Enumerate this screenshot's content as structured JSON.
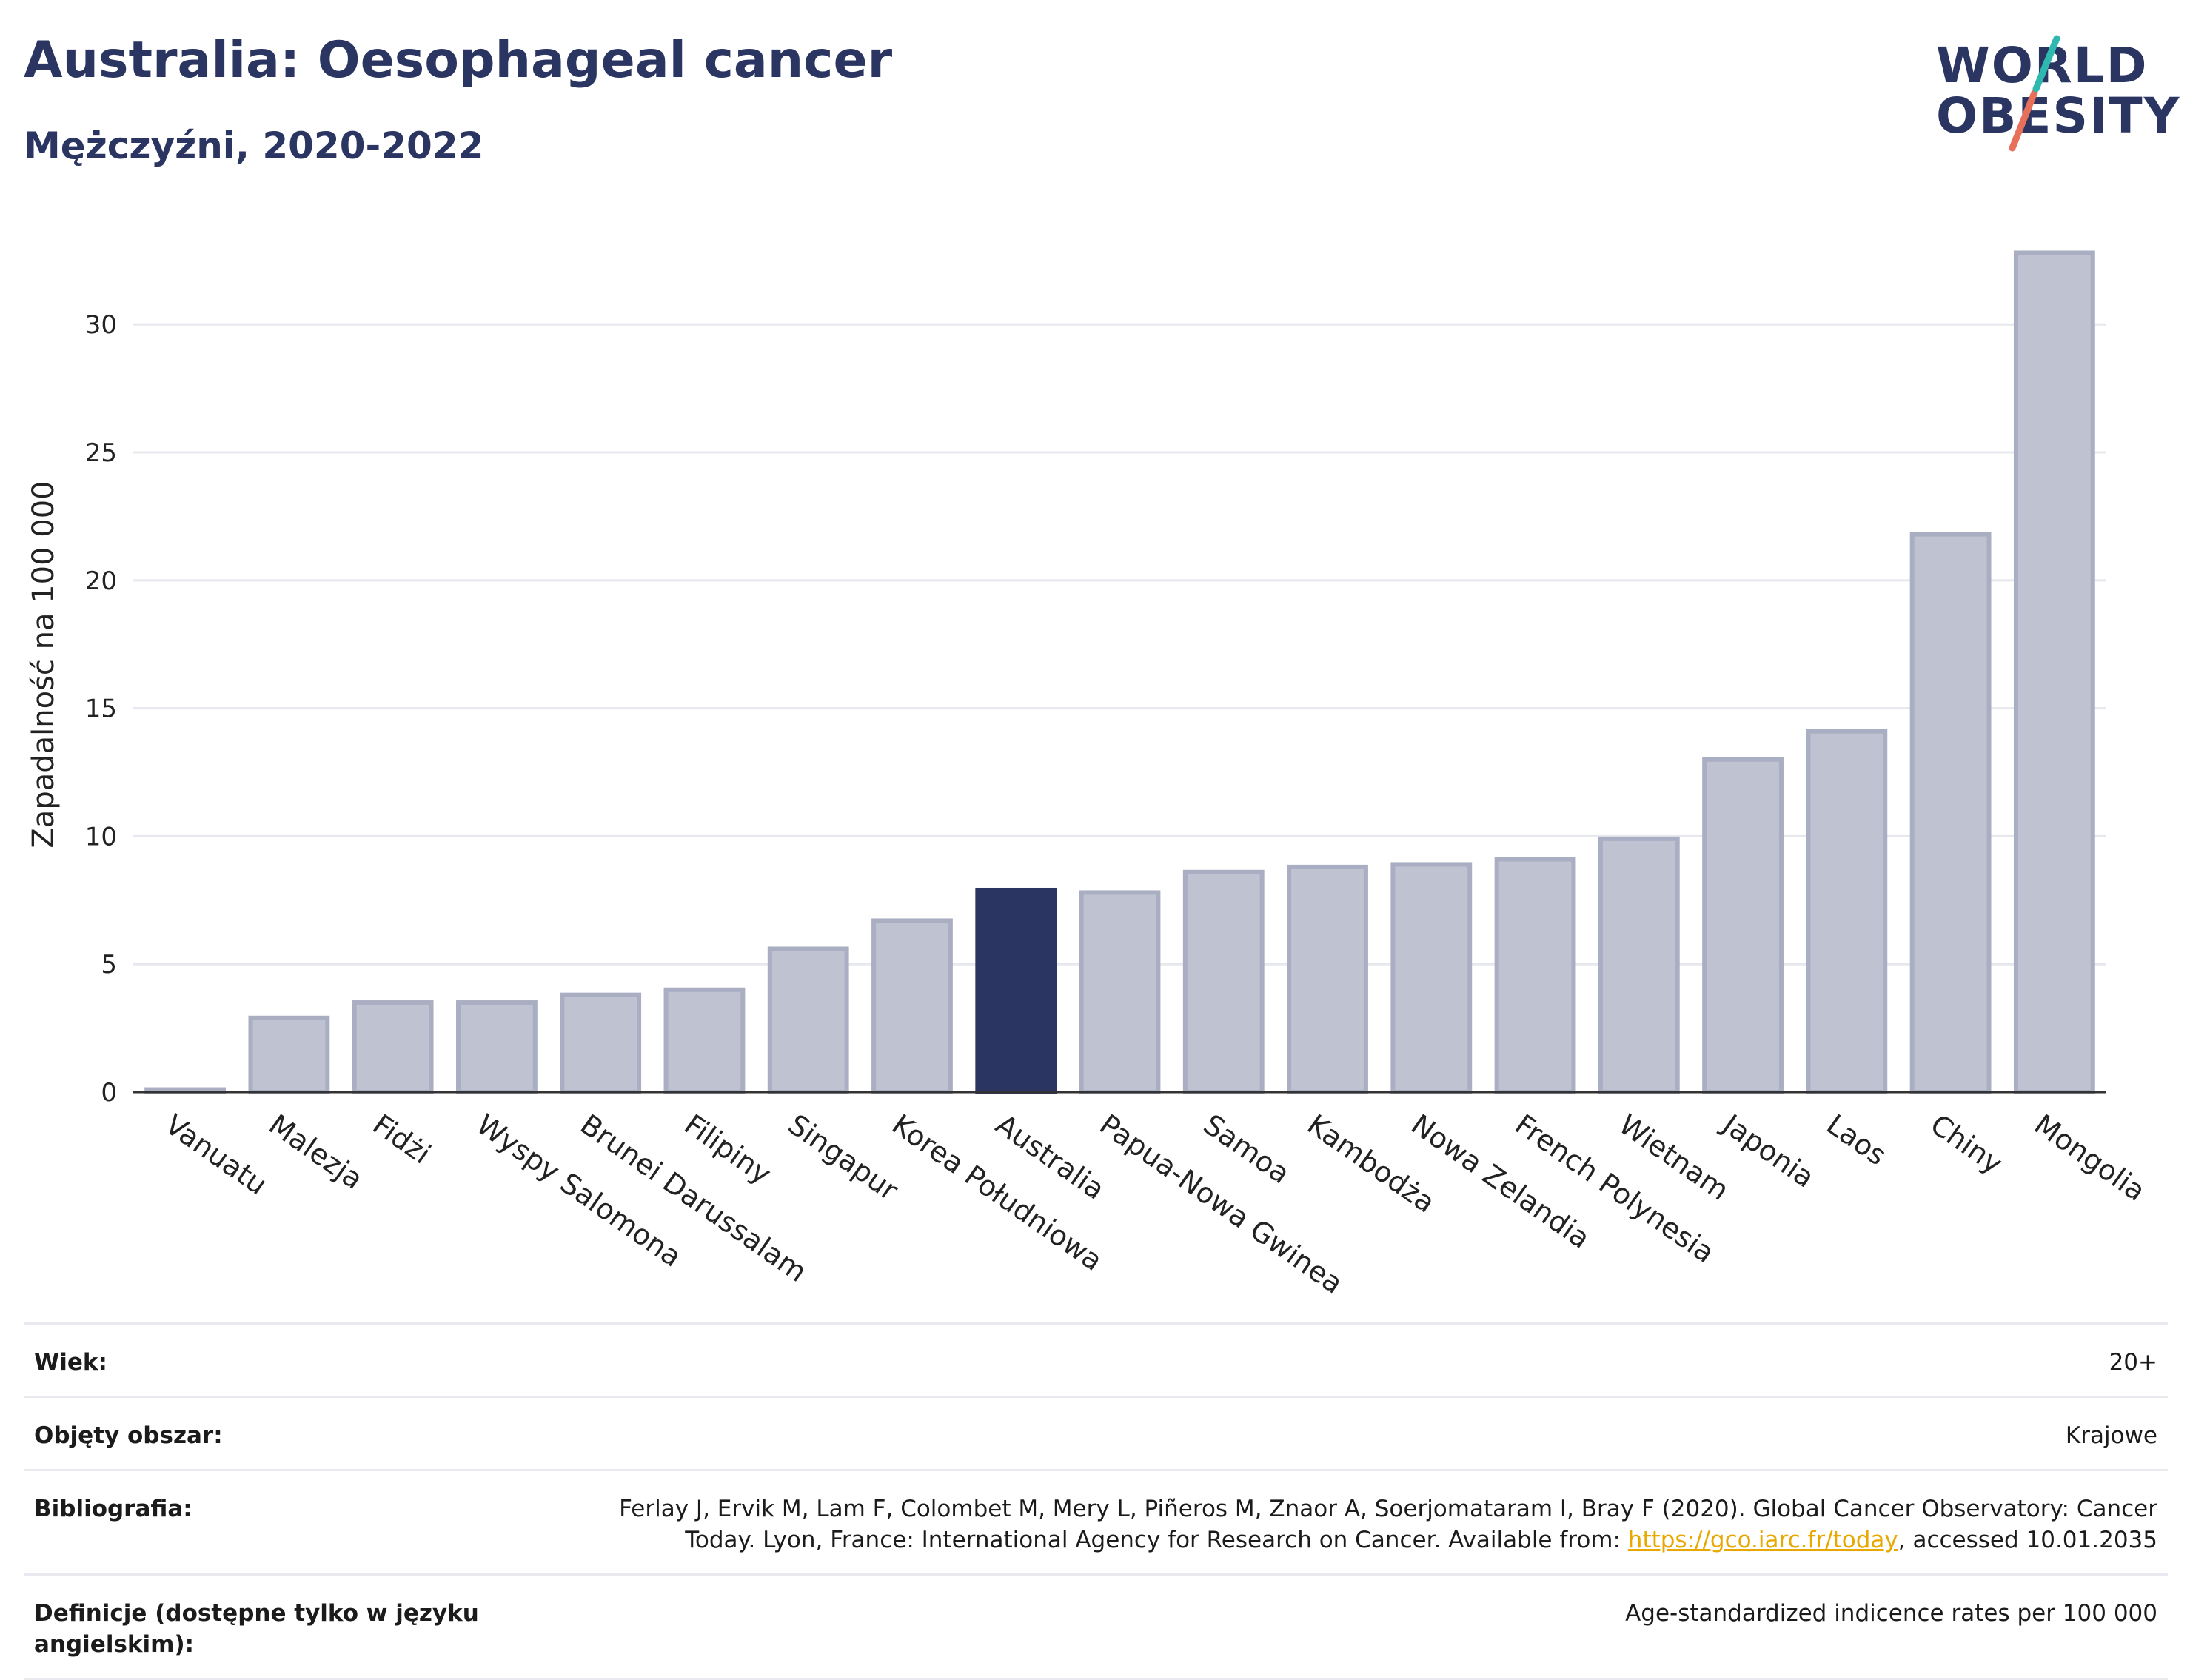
{
  "header": {
    "title": "Australia: Oesophageal cancer",
    "subtitle": "Mężczyźni, 2020-2022"
  },
  "logo": {
    "line1": "WORLD",
    "line2": "OBESITY"
  },
  "colors": {
    "highlight": "#2b3561",
    "bar": "#bfc2d0",
    "bar_edge": "#a9aec2",
    "text_dark": "#2b3561",
    "link": "#e8a800"
  },
  "chart_data": {
    "type": "bar",
    "categories": [
      "Vanuatu",
      "Malezja",
      "Fidżi",
      "Wyspy Salomona",
      "Brunei Darussalam",
      "Filipiny",
      "Singapur",
      "Korea Południowa",
      "Australia",
      "Papua-Nowa Gwinea",
      "Samoa",
      "Kambodża",
      "Nowa Zelandia",
      "French Polynesia",
      "Wietnam",
      "Japonia",
      "Laos",
      "Chiny",
      "Mongolia"
    ],
    "values": [
      0.1,
      2.9,
      3.5,
      3.5,
      3.8,
      4.0,
      5.6,
      6.7,
      7.9,
      7.8,
      8.6,
      8.8,
      8.9,
      9.1,
      9.9,
      13.0,
      14.1,
      21.8,
      32.8
    ],
    "highlight": "Australia",
    "ylabel": "Zapadalność na 100 000",
    "yticks": [
      0,
      5,
      10,
      15,
      20,
      25,
      30
    ],
    "ylim": [
      0,
      34
    ],
    "grid": true
  },
  "meta": {
    "rows": [
      {
        "label": "Wiek:",
        "value": "20+"
      },
      {
        "label": "Objęty obszar:",
        "value": "Krajowe"
      },
      {
        "label": "Bibliografia:",
        "value_pre": "Ferlay J, Ervik M, Lam F, Colombet M, Mery L, Piñeros M, Znaor A, Soerjomataram I, Bray F (2020). Global Cancer Observatory: Cancer Today. Lyon, France: International Agency for Research on Cancer. Available from: ",
        "link": "https://gco.iarc.fr/today",
        "value_post": ", accessed 10.01.2035"
      },
      {
        "label": "Definicje (dostępne tylko w języku angielskim):",
        "value": "Age-standardized indicence rates per 100 000"
      }
    ]
  }
}
